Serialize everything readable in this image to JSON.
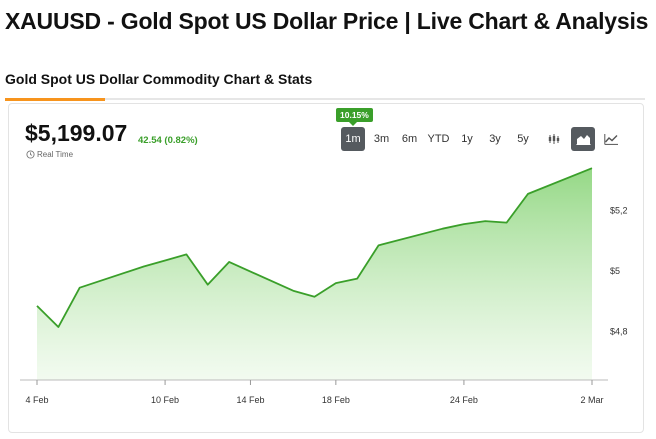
{
  "page": {
    "title": "XAUUSD - Gold Spot US Dollar Price | Live Chart & Analysis",
    "section_tab": "Gold Spot US Dollar Commodity Chart & Stats"
  },
  "quote": {
    "price": "$5,199.07",
    "change": "42.54 (0.82%)",
    "realtime_label": "Real Time",
    "period_change_badge": "10.15%"
  },
  "range_buttons": [
    "1m",
    "3m",
    "6m",
    "YTD",
    "1y",
    "3y",
    "5y"
  ],
  "active_range": "1m",
  "chart_type_buttons": [
    {
      "name": "candlestick-icon",
      "active": false
    },
    {
      "name": "area-chart-icon",
      "active": true
    },
    {
      "name": "line-chart-icon",
      "active": false
    }
  ],
  "colors": {
    "accent": "#f7941d",
    "positive": "#3a9f2a",
    "area_fill_top": "#8fd67f",
    "area_fill_bottom": "#eaf8e6"
  },
  "chart_data": {
    "type": "area",
    "x_tick_labels": [
      "4 Feb",
      "10 Feb",
      "14 Feb",
      "18 Feb",
      "24 Feb",
      "2 Mar"
    ],
    "y_tick_labels": [
      "$5,2",
      "$5",
      "$4,8"
    ],
    "y_ticks": [
      5200,
      5000,
      4800
    ],
    "ylim": [
      4640,
      5400
    ],
    "grid": false,
    "series": [
      {
        "x": [
          "2026-02-04",
          "2026-02-05",
          "2026-02-06",
          "2026-02-09",
          "2026-02-10",
          "2026-02-11",
          "2026-02-12",
          "2026-02-13",
          "2026-02-16",
          "2026-02-17",
          "2026-02-18",
          "2026-02-19",
          "2026-02-20",
          "2026-02-23",
          "2026-02-24",
          "2026-02-25",
          "2026-02-26",
          "2026-02-27",
          "2026-03-02"
        ],
        "values": [
          4885,
          4815,
          4945,
          5015,
          5035,
          5055,
          4955,
          5030,
          4935,
          4915,
          4960,
          4975,
          5085,
          5140,
          5155,
          5165,
          5160,
          5255,
          5340
        ]
      }
    ]
  }
}
